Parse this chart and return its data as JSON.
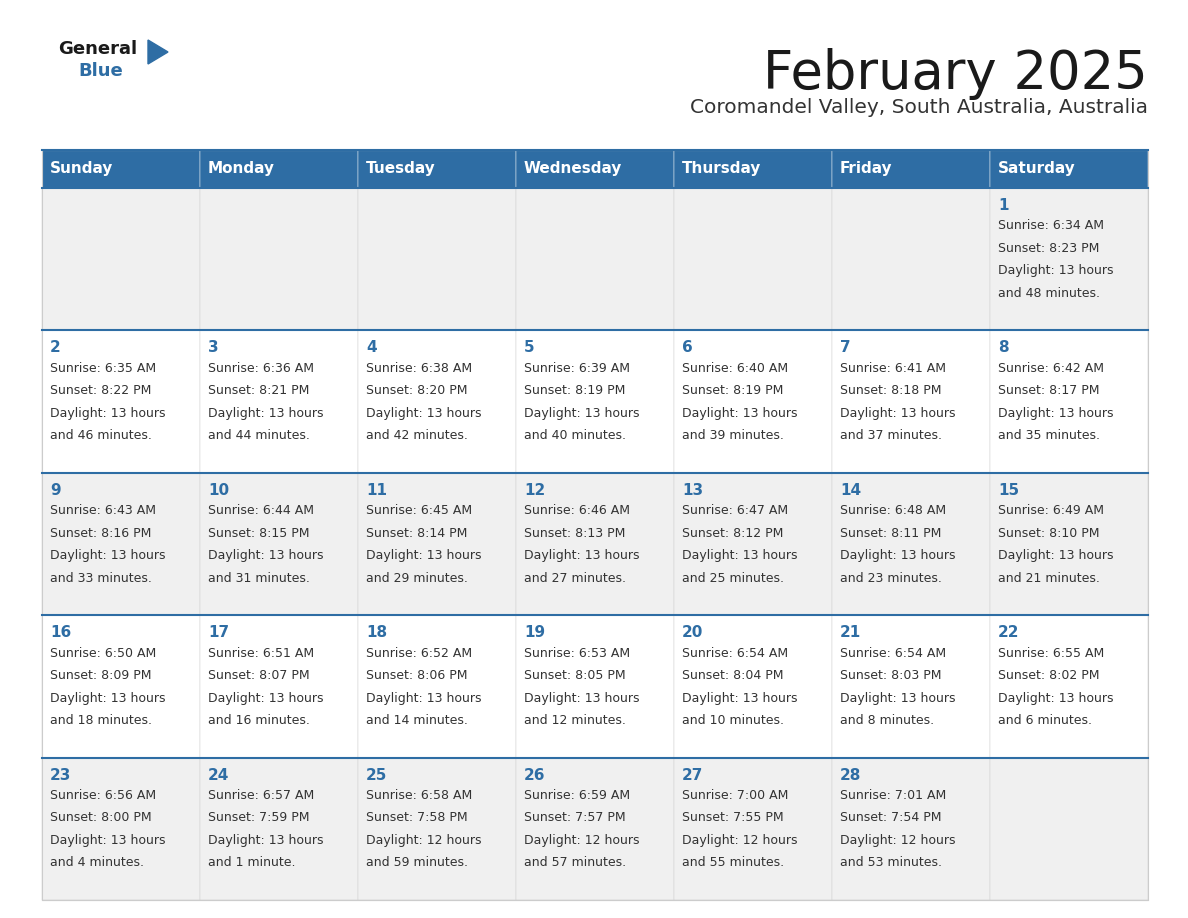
{
  "title": "February 2025",
  "subtitle": "Coromandel Valley, South Australia, Australia",
  "header_bg": "#2E6DA4",
  "header_text_color": "#FFFFFF",
  "cell_bg_odd": "#F0F0F0",
  "cell_bg_even": "#FFFFFF",
  "row_border_color": "#2E6DA4",
  "col_border_color": "#CCCCCC",
  "title_color": "#1a1a1a",
  "subtitle_color": "#333333",
  "day_number_color": "#2E6DA4",
  "info_text_color": "#333333",
  "day_headers": [
    "Sunday",
    "Monday",
    "Tuesday",
    "Wednesday",
    "Thursday",
    "Friday",
    "Saturday"
  ],
  "calendar": [
    [
      null,
      null,
      null,
      null,
      null,
      null,
      {
        "day": "1",
        "sunrise": "Sunrise: 6:34 AM",
        "sunset": "Sunset: 8:23 PM",
        "daylight1": "Daylight: 13 hours",
        "daylight2": "and 48 minutes."
      }
    ],
    [
      {
        "day": "2",
        "sunrise": "Sunrise: 6:35 AM",
        "sunset": "Sunset: 8:22 PM",
        "daylight1": "Daylight: 13 hours",
        "daylight2": "and 46 minutes."
      },
      {
        "day": "3",
        "sunrise": "Sunrise: 6:36 AM",
        "sunset": "Sunset: 8:21 PM",
        "daylight1": "Daylight: 13 hours",
        "daylight2": "and 44 minutes."
      },
      {
        "day": "4",
        "sunrise": "Sunrise: 6:38 AM",
        "sunset": "Sunset: 8:20 PM",
        "daylight1": "Daylight: 13 hours",
        "daylight2": "and 42 minutes."
      },
      {
        "day": "5",
        "sunrise": "Sunrise: 6:39 AM",
        "sunset": "Sunset: 8:19 PM",
        "daylight1": "Daylight: 13 hours",
        "daylight2": "and 40 minutes."
      },
      {
        "day": "6",
        "sunrise": "Sunrise: 6:40 AM",
        "sunset": "Sunset: 8:19 PM",
        "daylight1": "Daylight: 13 hours",
        "daylight2": "and 39 minutes."
      },
      {
        "day": "7",
        "sunrise": "Sunrise: 6:41 AM",
        "sunset": "Sunset: 8:18 PM",
        "daylight1": "Daylight: 13 hours",
        "daylight2": "and 37 minutes."
      },
      {
        "day": "8",
        "sunrise": "Sunrise: 6:42 AM",
        "sunset": "Sunset: 8:17 PM",
        "daylight1": "Daylight: 13 hours",
        "daylight2": "and 35 minutes."
      }
    ],
    [
      {
        "day": "9",
        "sunrise": "Sunrise: 6:43 AM",
        "sunset": "Sunset: 8:16 PM",
        "daylight1": "Daylight: 13 hours",
        "daylight2": "and 33 minutes."
      },
      {
        "day": "10",
        "sunrise": "Sunrise: 6:44 AM",
        "sunset": "Sunset: 8:15 PM",
        "daylight1": "Daylight: 13 hours",
        "daylight2": "and 31 minutes."
      },
      {
        "day": "11",
        "sunrise": "Sunrise: 6:45 AM",
        "sunset": "Sunset: 8:14 PM",
        "daylight1": "Daylight: 13 hours",
        "daylight2": "and 29 minutes."
      },
      {
        "day": "12",
        "sunrise": "Sunrise: 6:46 AM",
        "sunset": "Sunset: 8:13 PM",
        "daylight1": "Daylight: 13 hours",
        "daylight2": "and 27 minutes."
      },
      {
        "day": "13",
        "sunrise": "Sunrise: 6:47 AM",
        "sunset": "Sunset: 8:12 PM",
        "daylight1": "Daylight: 13 hours",
        "daylight2": "and 25 minutes."
      },
      {
        "day": "14",
        "sunrise": "Sunrise: 6:48 AM",
        "sunset": "Sunset: 8:11 PM",
        "daylight1": "Daylight: 13 hours",
        "daylight2": "and 23 minutes."
      },
      {
        "day": "15",
        "sunrise": "Sunrise: 6:49 AM",
        "sunset": "Sunset: 8:10 PM",
        "daylight1": "Daylight: 13 hours",
        "daylight2": "and 21 minutes."
      }
    ],
    [
      {
        "day": "16",
        "sunrise": "Sunrise: 6:50 AM",
        "sunset": "Sunset: 8:09 PM",
        "daylight1": "Daylight: 13 hours",
        "daylight2": "and 18 minutes."
      },
      {
        "day": "17",
        "sunrise": "Sunrise: 6:51 AM",
        "sunset": "Sunset: 8:07 PM",
        "daylight1": "Daylight: 13 hours",
        "daylight2": "and 16 minutes."
      },
      {
        "day": "18",
        "sunrise": "Sunrise: 6:52 AM",
        "sunset": "Sunset: 8:06 PM",
        "daylight1": "Daylight: 13 hours",
        "daylight2": "and 14 minutes."
      },
      {
        "day": "19",
        "sunrise": "Sunrise: 6:53 AM",
        "sunset": "Sunset: 8:05 PM",
        "daylight1": "Daylight: 13 hours",
        "daylight2": "and 12 minutes."
      },
      {
        "day": "20",
        "sunrise": "Sunrise: 6:54 AM",
        "sunset": "Sunset: 8:04 PM",
        "daylight1": "Daylight: 13 hours",
        "daylight2": "and 10 minutes."
      },
      {
        "day": "21",
        "sunrise": "Sunrise: 6:54 AM",
        "sunset": "Sunset: 8:03 PM",
        "daylight1": "Daylight: 13 hours",
        "daylight2": "and 8 minutes."
      },
      {
        "day": "22",
        "sunrise": "Sunrise: 6:55 AM",
        "sunset": "Sunset: 8:02 PM",
        "daylight1": "Daylight: 13 hours",
        "daylight2": "and 6 minutes."
      }
    ],
    [
      {
        "day": "23",
        "sunrise": "Sunrise: 6:56 AM",
        "sunset": "Sunset: 8:00 PM",
        "daylight1": "Daylight: 13 hours",
        "daylight2": "and 4 minutes."
      },
      {
        "day": "24",
        "sunrise": "Sunrise: 6:57 AM",
        "sunset": "Sunset: 7:59 PM",
        "daylight1": "Daylight: 13 hours",
        "daylight2": "and 1 minute."
      },
      {
        "day": "25",
        "sunrise": "Sunrise: 6:58 AM",
        "sunset": "Sunset: 7:58 PM",
        "daylight1": "Daylight: 12 hours",
        "daylight2": "and 59 minutes."
      },
      {
        "day": "26",
        "sunrise": "Sunrise: 6:59 AM",
        "sunset": "Sunset: 7:57 PM",
        "daylight1": "Daylight: 12 hours",
        "daylight2": "and 57 minutes."
      },
      {
        "day": "27",
        "sunrise": "Sunrise: 7:00 AM",
        "sunset": "Sunset: 7:55 PM",
        "daylight1": "Daylight: 12 hours",
        "daylight2": "and 55 minutes."
      },
      {
        "day": "28",
        "sunrise": "Sunrise: 7:01 AM",
        "sunset": "Sunset: 7:54 PM",
        "daylight1": "Daylight: 12 hours",
        "daylight2": "and 53 minutes."
      },
      null
    ]
  ]
}
